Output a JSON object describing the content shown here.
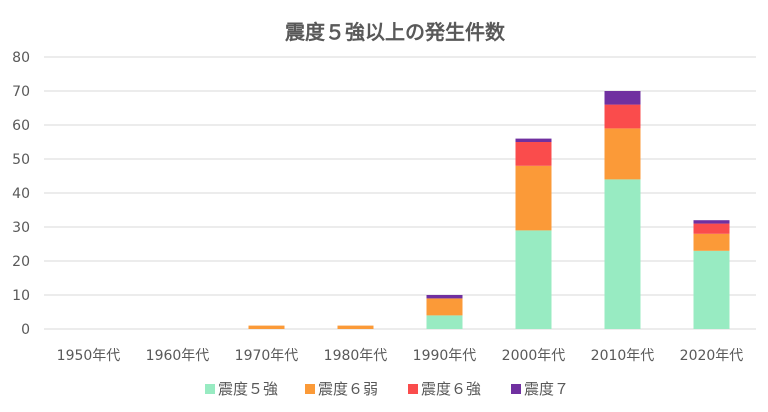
{
  "chart_data": {
    "type": "bar",
    "stacked": true,
    "title": "震度５強以上の発生件数",
    "categories": [
      "1950年代",
      "1960年代",
      "1970年代",
      "1980年代",
      "1990年代",
      "2000年代",
      "2010年代",
      "2020年代"
    ],
    "series": [
      {
        "name": "震度５強",
        "color": "#98ebc2",
        "values": [
          0,
          0,
          0,
          0,
          4,
          29,
          44,
          23
        ]
      },
      {
        "name": "震度６弱",
        "color": "#fb9a38",
        "values": [
          0,
          0,
          1,
          1,
          5,
          19,
          15,
          5
        ]
      },
      {
        "name": "震度６強",
        "color": "#fa4c4c",
        "values": [
          0,
          0,
          0,
          0,
          0,
          7,
          7,
          3
        ]
      },
      {
        "name": "震度７",
        "color": "#7030a0",
        "values": [
          0,
          0,
          0,
          0,
          1,
          1,
          4,
          1
        ]
      }
    ],
    "ylim": [
      0,
      80
    ],
    "yticks": [
      0,
      10,
      20,
      30,
      40,
      50,
      60,
      70,
      80
    ],
    "grid": true,
    "legend": "bottom"
  }
}
